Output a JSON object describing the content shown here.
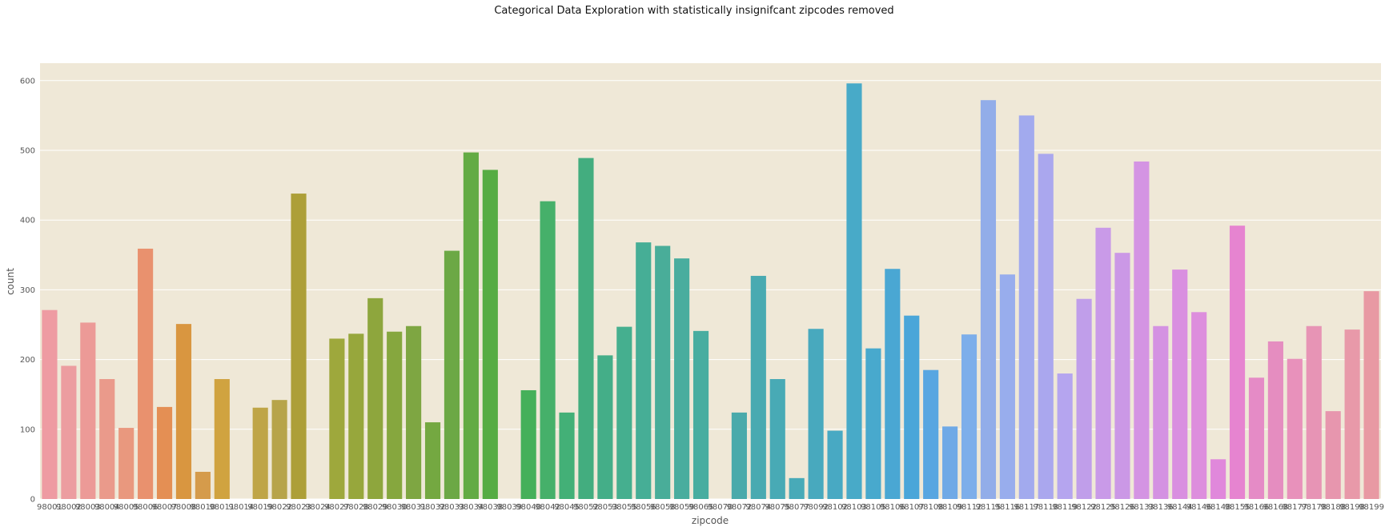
{
  "chart_data": {
    "type": "bar",
    "title": "Categorical Data Exploration with statistically insignifcant zipcodes removed",
    "xlabel": "zipcode",
    "ylabel": "count",
    "ylim": [
      0,
      625
    ],
    "yticks": [
      0,
      100,
      200,
      300,
      400,
      500,
      600
    ],
    "grid": true,
    "legend": "none",
    "background": "#efe8d7",
    "categories": [
      "98001",
      "98002",
      "98003",
      "98004",
      "98005",
      "98006",
      "98007",
      "98008",
      "98010",
      "98011",
      "98014",
      "98019",
      "98022",
      "98023",
      "98024",
      "98027",
      "98028",
      "98029",
      "98030",
      "98031",
      "98032",
      "98033",
      "98034",
      "98038",
      "98039",
      "98040",
      "98042",
      "98045",
      "98052",
      "98053",
      "98055",
      "98056",
      "98058",
      "98059",
      "98065",
      "98070",
      "98072",
      "98074",
      "98075",
      "98077",
      "98092",
      "98102",
      "98103",
      "98105",
      "98106",
      "98107",
      "98108",
      "98109",
      "98112",
      "98115",
      "98116",
      "98117",
      "98118",
      "98119",
      "98122",
      "98125",
      "98126",
      "98133",
      "98136",
      "98144",
      "98146",
      "98148",
      "98155",
      "98166",
      "98168",
      "98177",
      "98178",
      "98188",
      "98198",
      "98199"
    ],
    "values": [
      271,
      191,
      253,
      172,
      102,
      359,
      132,
      251,
      39,
      172,
      0,
      131,
      142,
      438,
      0,
      230,
      237,
      288,
      240,
      248,
      110,
      356,
      497,
      472,
      0,
      156,
      427,
      124,
      489,
      206,
      247,
      368,
      363,
      345,
      241,
      0,
      124,
      320,
      172,
      30,
      244,
      98,
      596,
      216,
      330,
      263,
      185,
      104,
      236,
      572,
      322,
      550,
      495,
      180,
      287,
      389,
      353,
      484,
      248,
      329,
      268,
      57,
      392,
      174,
      226,
      201,
      248,
      126,
      243,
      298
    ],
    "colors": [
      "#ee9ba2",
      "#ec9da0",
      "#ec9a97",
      "#ea9a8b",
      "#e9987e",
      "#e9916e",
      "#e48f54",
      "#d99640",
      "#d59b4b",
      "#d0a340",
      "#c6a547",
      "#bfa547",
      "#b7a44a",
      "#ad9f38",
      "#a5a43b",
      "#9ea83c",
      "#97a73c",
      "#8ea63d",
      "#86a73e",
      "#7ea642",
      "#74a841",
      "#6ca845",
      "#63ab44",
      "#56ac43",
      "#4caf48",
      "#45b05a",
      "#46b06a",
      "#43b077",
      "#43ad7f",
      "#44ae88",
      "#45af8f",
      "#46ae96",
      "#49ad99",
      "#49ad9e",
      "#48ada0",
      "#48ada7",
      "#4aaaab",
      "#49aab1",
      "#48aab5",
      "#48aab8",
      "#48a9be",
      "#48a9c3",
      "#48aac8",
      "#48a9cd",
      "#4aa7d3",
      "#4aa6d9",
      "#58a6e1",
      "#6fa9e6",
      "#7daeea",
      "#92ade9",
      "#98aded",
      "#a2aaee",
      "#aaa7ee",
      "#b5a5ef",
      "#c09eea",
      "#c99ae8",
      "#cb98e6",
      "#d494e3",
      "#d492e2",
      "#d98fe0",
      "#dd8edd",
      "#e088db",
      "#e684d0",
      "#e58bc6",
      "#e58dc0",
      "#e891bb",
      "#e794b5",
      "#e796ae",
      "#e899a9",
      "#e899a3"
    ]
  }
}
